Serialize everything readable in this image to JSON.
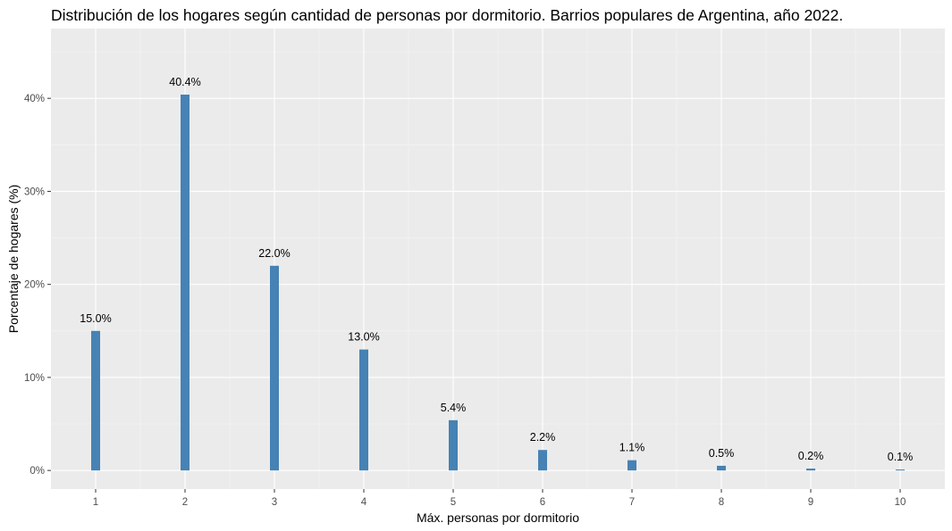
{
  "chart_data": {
    "type": "bar",
    "title": "Distribución de los hogares según cantidad de personas por dormitorio. Barrios populares de Argentina, año 2022.",
    "xlabel": "Máx. personas por dormitorio",
    "ylabel": "Porcentaje de hogares (%)",
    "categories": [
      "1",
      "2",
      "3",
      "4",
      "5",
      "6",
      "7",
      "8",
      "9",
      "10"
    ],
    "values": [
      15.0,
      40.4,
      22.0,
      13.0,
      5.4,
      2.2,
      1.1,
      0.5,
      0.2,
      0.1
    ],
    "data_labels": [
      "15.0%",
      "40.4%",
      "22.0%",
      "13.0%",
      "5.4%",
      "2.2%",
      "1.1%",
      "0.5%",
      "0.2%",
      "0.1%"
    ],
    "y_ticks": [
      0,
      10,
      20,
      30,
      40
    ],
    "y_tick_labels": [
      "0%",
      "10%",
      "20%",
      "30%",
      "40%"
    ],
    "ylim": [
      -2,
      47.5
    ],
    "grid": true,
    "legend": "none",
    "colors": {
      "bar": "#4682B4",
      "panel_background": "#EBEBEB",
      "grid_major": "#FFFFFF",
      "grid_minor": "#F5F5F5"
    }
  }
}
